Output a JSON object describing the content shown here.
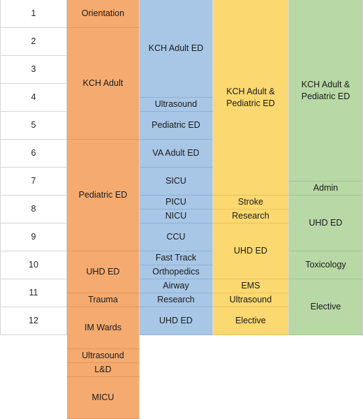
{
  "row_labels": [
    "1",
    "2",
    "3",
    "4",
    "5",
    "6",
    "7",
    "8",
    "9",
    "10",
    "11",
    "12"
  ],
  "columns": [
    {
      "color": "#f5ab70",
      "blocks": [
        {
          "label": "Orientation",
          "start": 0,
          "span": 2
        },
        {
          "label": "KCH Adult",
          "start": 2,
          "span": 8
        },
        {
          "label": "Pediatric ED",
          "start": 10,
          "span": 8
        },
        {
          "label": "UHD ED",
          "start": 18,
          "span": 3
        },
        {
          "label": "Trauma",
          "start": 21,
          "span": 1
        },
        {
          "label": "IM Wards",
          "start": 22,
          "span": 3
        },
        {
          "label": "Ultrasound",
          "start": 25,
          "span": 1
        },
        {
          "label": "L&D",
          "start": 26,
          "span": 1
        },
        {
          "label": "MICU",
          "start": 27,
          "span": 3
        }
      ]
    },
    {
      "color": "#a8c6e6",
      "blocks": [
        {
          "label": "KCH Adult ED",
          "start": 0,
          "span": 7
        },
        {
          "label": "Ultrasound",
          "start": 7,
          "span": 1
        },
        {
          "label": "Pediatric ED",
          "start": 8,
          "span": 2
        },
        {
          "label": "VA Adult ED",
          "start": 10,
          "span": 2
        },
        {
          "label": "SICU",
          "start": 12,
          "span": 2
        },
        {
          "label": "PICU",
          "start": 14,
          "span": 1
        },
        {
          "label": "NICU",
          "start": 15,
          "span": 1
        },
        {
          "label": "CCU",
          "start": 16,
          "span": 2
        },
        {
          "label": "Fast Track",
          "start": 18,
          "span": 1
        },
        {
          "label": "Orthopedics",
          "start": 19,
          "span": 1
        },
        {
          "label": "Airway",
          "start": 20,
          "span": 1
        },
        {
          "label": "Research",
          "start": 21,
          "span": 1
        },
        {
          "label": "UHD ED",
          "start": 22,
          "span": 2
        }
      ]
    },
    {
      "color": "#fbd870",
      "blocks": [
        {
          "label": "KCH Adult &\nPediatric ED",
          "start": 0,
          "span": 14
        },
        {
          "label": "Stroke",
          "start": 14,
          "span": 1
        },
        {
          "label": "Research",
          "start": 15,
          "span": 1
        },
        {
          "label": "UHD ED",
          "start": 16,
          "span": 4
        },
        {
          "label": "EMS",
          "start": 20,
          "span": 1
        },
        {
          "label": "Ultrasound",
          "start": 21,
          "span": 1
        },
        {
          "label": "Elective",
          "start": 22,
          "span": 2
        }
      ]
    },
    {
      "color": "#b8d8a6",
      "blocks": [
        {
          "label": "KCH Adult &\nPediatric ED",
          "start": 0,
          "span": 13
        },
        {
          "label": "Admin",
          "start": 13,
          "span": 1
        },
        {
          "label": "UHD ED",
          "start": 14,
          "span": 4
        },
        {
          "label": "Toxicology",
          "start": 18,
          "span": 2
        },
        {
          "label": "Elective",
          "start": 20,
          "span": 4
        }
      ]
    }
  ]
}
